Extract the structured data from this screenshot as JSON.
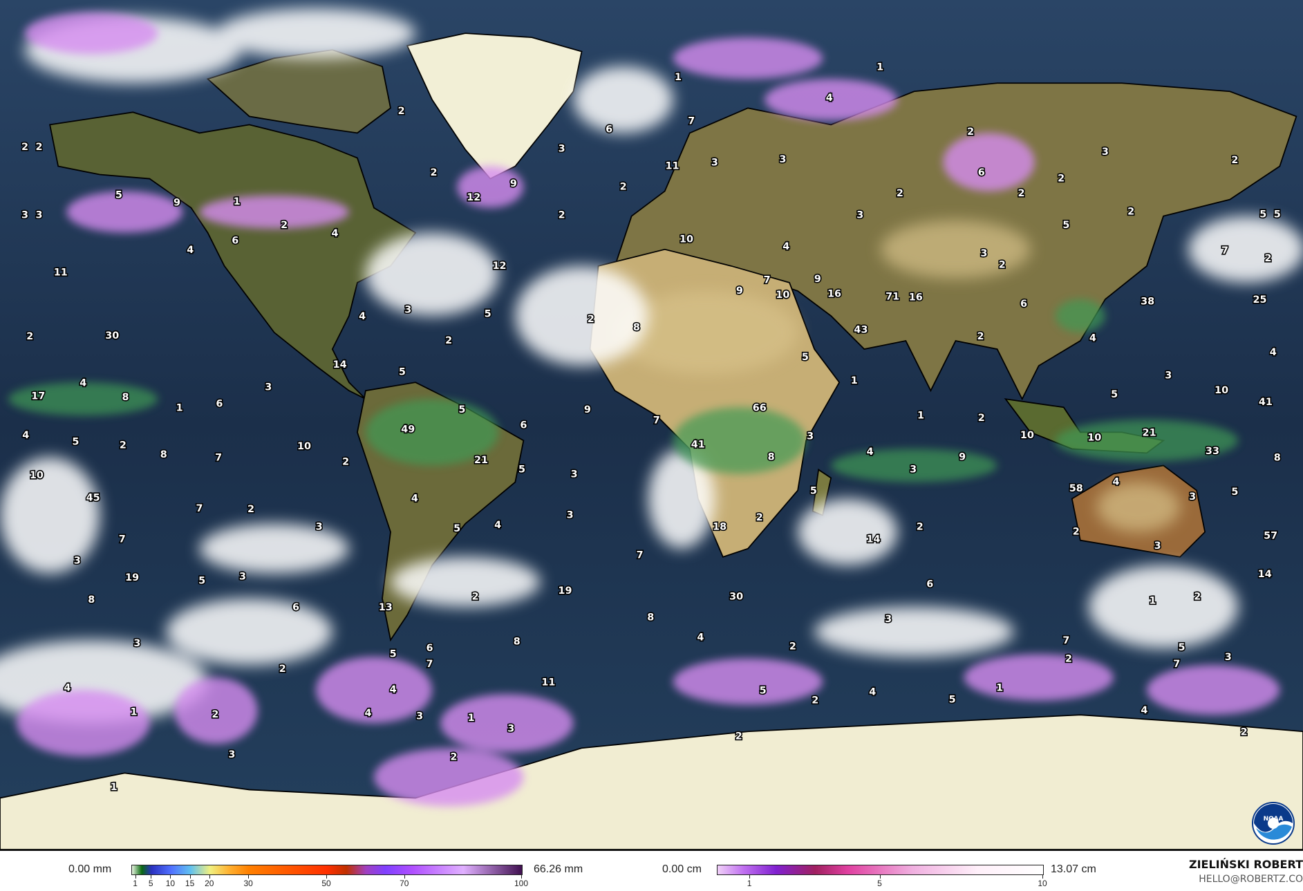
{
  "map": {
    "layers": [
      "precipitation",
      "snowfall",
      "satellite-imagery",
      "coastlines",
      "country-borders"
    ],
    "colors": {
      "ocean": "#1e344f",
      "land": "#5f6233",
      "desert": "#c6ae75",
      "ice": "#f1edd2",
      "cloud": "#ffffff",
      "snow": "#d68cf0",
      "borders": "#e8e030"
    },
    "point_labels": [
      "2",
      "2",
      "3",
      "3",
      "5",
      "9",
      "1",
      "2",
      "4",
      "6",
      "4",
      "11",
      "2",
      "2",
      "12",
      "9",
      "2",
      "12",
      "6",
      "7",
      "1",
      "1",
      "4",
      "3",
      "11",
      "3",
      "3",
      "2",
      "2",
      "6",
      "2",
      "3",
      "2",
      "2",
      "2",
      "3",
      "5",
      "2",
      "5",
      "5",
      "7",
      "2",
      "38",
      "25",
      "10",
      "4",
      "3",
      "2",
      "7",
      "9",
      "16",
      "9",
      "10",
      "71",
      "16",
      "6",
      "43",
      "2",
      "4",
      "4",
      "5",
      "1",
      "3",
      "10",
      "41",
      "5",
      "8",
      "2",
      "4",
      "3",
      "5",
      "30",
      "2",
      "2",
      "14",
      "5",
      "4",
      "3",
      "17",
      "8",
      "1",
      "6",
      "5",
      "66",
      "9",
      "7",
      "6",
      "1",
      "2",
      "49",
      "4",
      "5",
      "2",
      "8",
      "7",
      "10",
      "2",
      "21",
      "41",
      "3",
      "8",
      "4",
      "3",
      "9",
      "10",
      "10",
      "21",
      "33",
      "8",
      "10",
      "5",
      "3",
      "45",
      "7",
      "2",
      "4",
      "5",
      "3",
      "4",
      "3",
      "5",
      "4",
      "3",
      "5",
      "58",
      "2",
      "18",
      "2",
      "2",
      "14",
      "3",
      "57",
      "7",
      "3",
      "19",
      "5",
      "3",
      "7",
      "19",
      "30",
      "6",
      "1",
      "2",
      "14",
      "8",
      "6",
      "13",
      "2",
      "8",
      "3",
      "3",
      "2",
      "8",
      "4",
      "2",
      "5",
      "6",
      "7",
      "7",
      "5",
      "7",
      "3",
      "11",
      "4",
      "4",
      "1",
      "2",
      "4",
      "3",
      "1",
      "3",
      "5",
      "4",
      "2",
      "1",
      "5",
      "4",
      "2",
      "2",
      "3",
      "2",
      "1",
      "2"
    ]
  },
  "legend": {
    "rain": {
      "min_label": "0.00 mm",
      "max_label": "66.26 mm",
      "ticks": [
        "1",
        "5",
        "10",
        "15",
        "20",
        "30",
        "50",
        "70",
        "100"
      ],
      "tick_values": [
        1,
        5,
        10,
        15,
        20,
        30,
        50,
        70,
        100
      ]
    },
    "snow": {
      "min_label": "0.00 cm",
      "max_label": "13.07 cm",
      "ticks": [
        "1",
        "5",
        "10"
      ],
      "tick_values": [
        1,
        5,
        10
      ]
    }
  },
  "author": {
    "name": "ZIELIŃSKI ROBERT",
    "email": "HELLO@ROBERTZ.CO"
  },
  "logo": {
    "name": "NOAA",
    "icon": "noaa-logo"
  }
}
